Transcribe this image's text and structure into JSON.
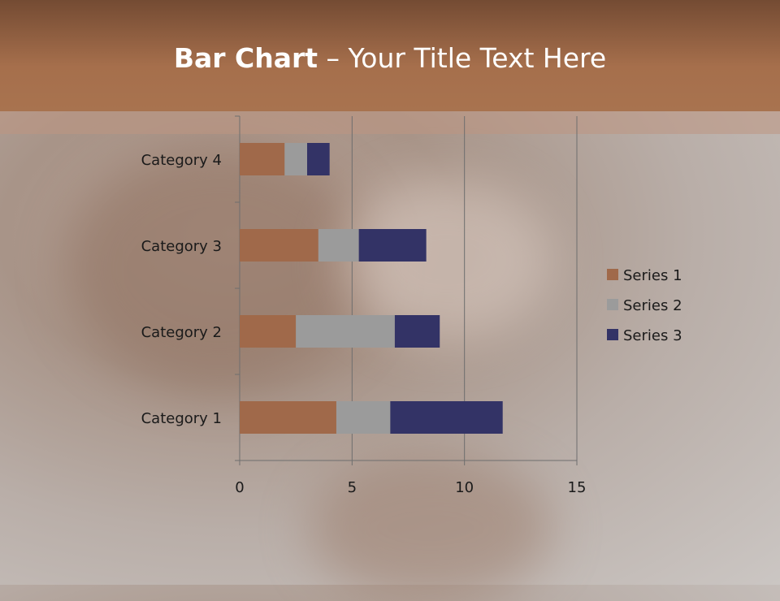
{
  "slide": {
    "title_bold": "Bar Chart",
    "title_rest": " – Your Title Text Here"
  },
  "chart_data": {
    "type": "bar",
    "orientation": "horizontal",
    "stacked": true,
    "categories": [
      "Category 1",
      "Category 2",
      "Category 3",
      "Category 4"
    ],
    "series": [
      {
        "name": "Series 1",
        "values": [
          4.3,
          2.5,
          3.5,
          2.0
        ],
        "color": "#a0694a"
      },
      {
        "name": "Series 2",
        "values": [
          2.4,
          4.4,
          1.8,
          1.0
        ],
        "color": "#9b9b9b"
      },
      {
        "name": "Series 3",
        "values": [
          5.0,
          2.0,
          3.0,
          1.0
        ],
        "color": "#333366"
      }
    ],
    "xlim": [
      0,
      15
    ],
    "xticks": [
      "0",
      "5",
      "10",
      "15"
    ],
    "grid": true,
    "legend": "right"
  }
}
